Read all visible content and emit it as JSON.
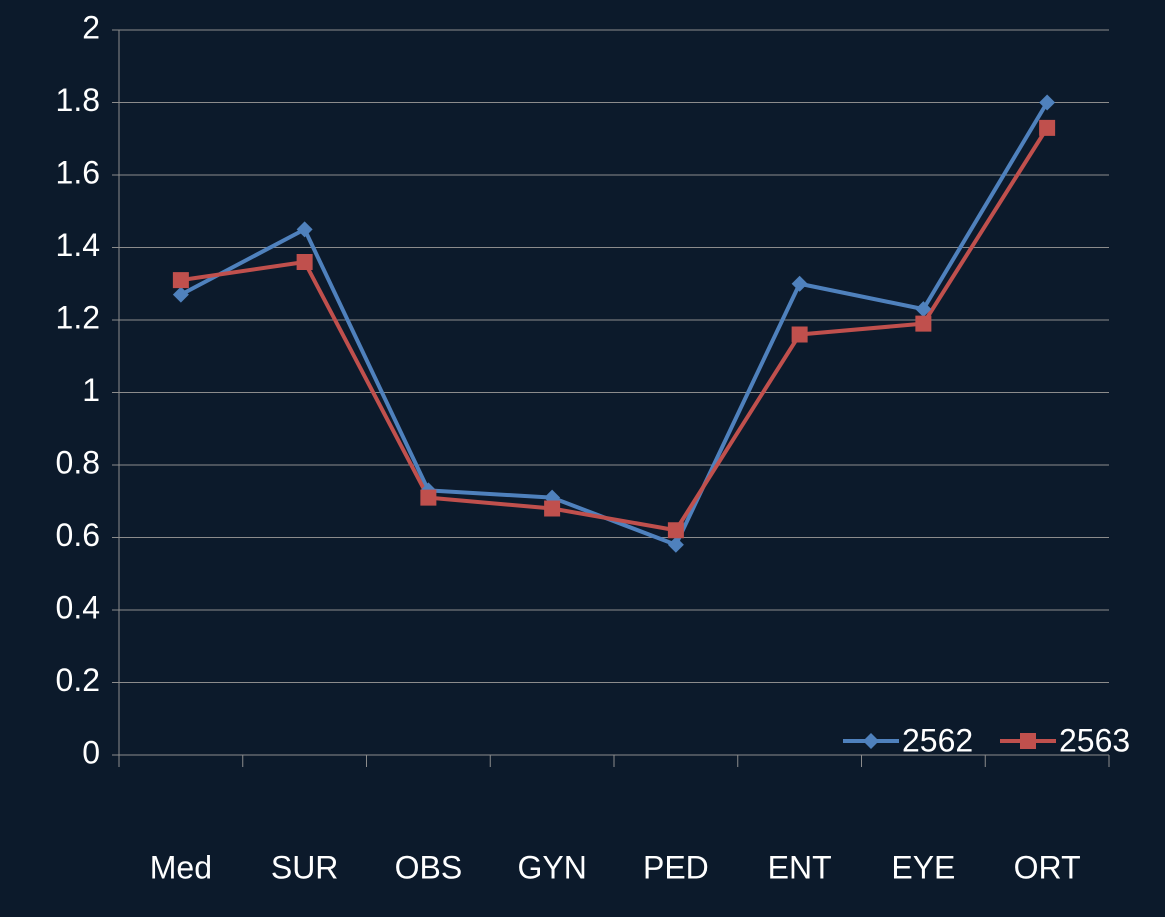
{
  "chart_data": {
    "type": "line",
    "categories": [
      "Med",
      "SUR",
      "OBS",
      "GYN",
      "PED",
      "ENT",
      "EYE",
      "ORT"
    ],
    "series": [
      {
        "name": "2562",
        "color": "#4f81bd",
        "marker": "diamond",
        "values": [
          1.27,
          1.45,
          0.73,
          0.71,
          0.58,
          1.3,
          1.23,
          1.8
        ]
      },
      {
        "name": "2563",
        "color": "#c0504d",
        "marker": "square",
        "values": [
          1.31,
          1.36,
          0.71,
          0.68,
          0.62,
          1.16,
          1.19,
          1.73
        ]
      }
    ],
    "ylim": [
      0,
      2
    ],
    "yticks": [
      0,
      0.2,
      0.4,
      0.6,
      0.8,
      1,
      1.2,
      1.4,
      1.6,
      1.8,
      2
    ],
    "grid": true,
    "legend": "lower right"
  }
}
